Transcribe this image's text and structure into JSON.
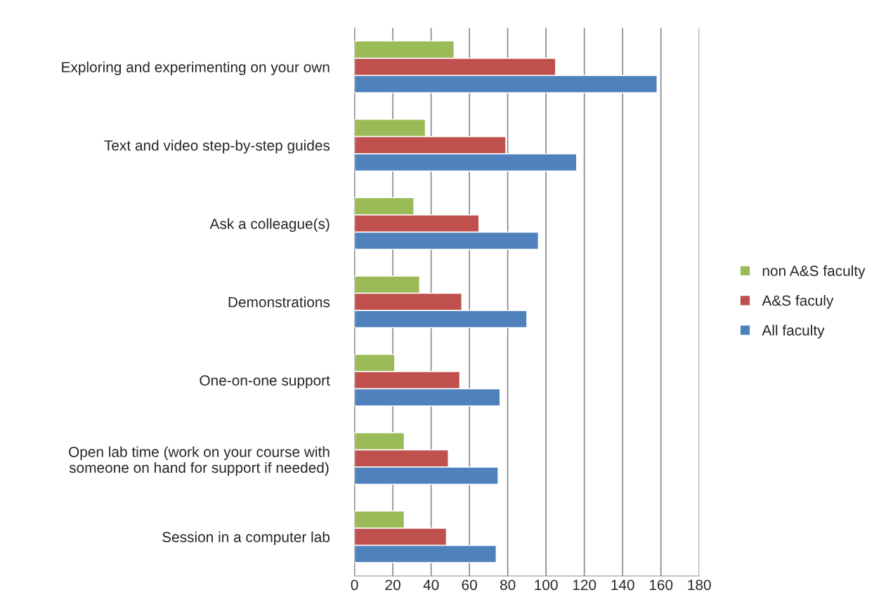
{
  "chart_data": {
    "type": "bar",
    "orientation": "horizontal",
    "categories": [
      "Exploring and experimenting on your own",
      "Text and video step-by-step guides",
      "Ask a colleague(s)",
      "Demonstrations",
      "One-on-one support",
      "Open lab time (work on your course with\nsomeone on hand for support if needed)",
      "Session in a computer lab"
    ],
    "series": [
      {
        "name": "non A&S faculty",
        "color": "#9bbb59",
        "values": [
          52,
          37,
          31,
          34,
          21,
          26,
          26
        ]
      },
      {
        "name": "A&S faculy",
        "color": "#c0504d",
        "values": [
          105,
          79,
          65,
          56,
          55,
          49,
          48
        ]
      },
      {
        "name": "All faculty",
        "color": "#4f81bd",
        "values": [
          158,
          116,
          96,
          90,
          76,
          75,
          74
        ]
      }
    ],
    "xlim": [
      0,
      180
    ],
    "xticks": [
      0,
      20,
      40,
      60,
      80,
      100,
      120,
      140,
      160,
      180
    ],
    "grid": "x",
    "legend": "right"
  }
}
